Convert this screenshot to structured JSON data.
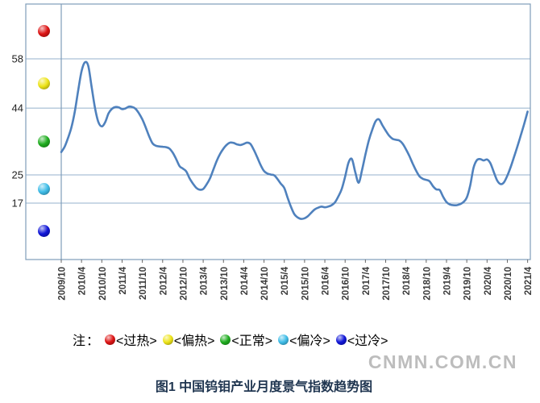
{
  "page": {
    "caption": "图1  中国钨钼产业月度景气指数趋势图",
    "watermark": "CNMN.COM.CN"
  },
  "legend": {
    "prefix": "注：",
    "items": [
      {
        "name": "overheated",
        "label": "<过热>",
        "color": "#dd1414"
      },
      {
        "name": "slightly-hot",
        "label": "<偏热>",
        "color": "#ede419"
      },
      {
        "name": "normal",
        "label": "<正常>",
        "color": "#1fad1f"
      },
      {
        "name": "slightly-cold",
        "label": "<偏冷>",
        "color": "#3fbde8"
      },
      {
        "name": "overcold",
        "label": "<过冷>",
        "color": "#1016d8"
      }
    ]
  },
  "chart_data": {
    "type": "line",
    "title": "中国钨钼产业月度景气指数趋势图",
    "xlabel": "",
    "ylabel": "",
    "y_tick_labels": [
      "58",
      "44",
      "25",
      "17"
    ],
    "y_ticks": [
      58,
      44,
      25,
      17
    ],
    "ylim": [
      0,
      74
    ],
    "grid": "horizontal zone lines at 17, 25, 44, 58",
    "legend_position": "bottom",
    "line_color": "#4f81bd",
    "zones": [
      {
        "label": "过热",
        "range": "above 58",
        "color": "#dd1414"
      },
      {
        "label": "偏热",
        "range": "44-58",
        "color": "#ede419"
      },
      {
        "label": "正常",
        "range": "25-44",
        "color": "#1fad1f"
      },
      {
        "label": "偏冷",
        "range": "17-25",
        "color": "#3fbde8"
      },
      {
        "label": "过冷",
        "range": "below 17",
        "color": "#1016d8"
      }
    ],
    "x_tick_labels": [
      "2009/10",
      "2010/4",
      "2010/10",
      "2011/4",
      "2011/10",
      "2012/4",
      "2012/10",
      "2013/4",
      "2013/10",
      "2014/4",
      "2014/10",
      "2015/4",
      "2015/10",
      "2016/4",
      "2016/10",
      "2017/4",
      "2017/10",
      "2018/4",
      "2018/10",
      "2019/4",
      "2019/10",
      "2020/4",
      "2020/10",
      "2021/4"
    ],
    "x_start": "2009/10",
    "x_end": "2021/4",
    "frequency": "monthly",
    "series": [
      {
        "name": "月度景气指数",
        "values": [
          31.5,
          33,
          35.5,
          38.5,
          43,
          49,
          54.5,
          57,
          56,
          50,
          44,
          40,
          38.8,
          40,
          42.5,
          43.8,
          44.3,
          44.2,
          43.7,
          43.9,
          44.4,
          44.3,
          43.8,
          42.5,
          40.8,
          38.5,
          36,
          34,
          33.3,
          33.1,
          33,
          32.9,
          32.5,
          31.3,
          29.5,
          27.5,
          26.8,
          26,
          24,
          22.5,
          21.3,
          20.8,
          21,
          22.3,
          24,
          26.5,
          29,
          31,
          32.5,
          33.6,
          34.2,
          34.1,
          33.7,
          33.5,
          33.8,
          34.2,
          33.8,
          32.1,
          30,
          27.8,
          26.1,
          25.4,
          25.1,
          24.9,
          23.8,
          22.5,
          21.3,
          18.5,
          15.9,
          13.8,
          12.9,
          12.5,
          12.7,
          13.3,
          14.3,
          15.2,
          15.7,
          16,
          15.8,
          16,
          16.4,
          17.2,
          18.9,
          21,
          24.5,
          28.5,
          29.5,
          25.8,
          22.8,
          26.4,
          30.8,
          34.8,
          37.8,
          40.2,
          40.8,
          39.2,
          37.6,
          36.2,
          35.3,
          35,
          34.8,
          33.9,
          32.3,
          30.4,
          28.2,
          26.2,
          24.6,
          23.9,
          23.6,
          23.2,
          21.8,
          20.9,
          20.7,
          18.8,
          17.3,
          16.6,
          16.4,
          16.4,
          16.7,
          17.3,
          18.6,
          22,
          27,
          29.2,
          29.5,
          29.1,
          29.4,
          28.3,
          25.8,
          23.4,
          22.4,
          22.9,
          24.8,
          27.3,
          30.2,
          33.2,
          36.3,
          39.5,
          43
        ]
      }
    ]
  }
}
